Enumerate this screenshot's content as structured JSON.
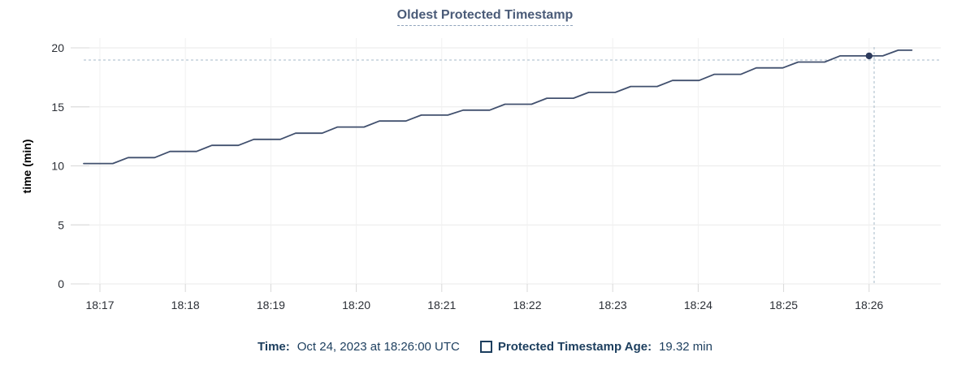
{
  "chart": {
    "title": "Oldest Protected Timestamp",
    "y_axis_label": "time (min)"
  },
  "legend": {
    "time_label": "Time:",
    "time_value": "Oct 24, 2023 at 18:26:00 UTC",
    "series_icon": "square-outline-icon",
    "series_label": "Protected Timestamp Age:",
    "series_value": "19.32 min"
  },
  "colors": {
    "line": "#41506e",
    "hover_dot": "#2c3a5c",
    "title_text": "#4a5b78",
    "title_underline": "#8fa3bb",
    "legend_text": "#1c3e5e",
    "tick_text": "#2b2f36",
    "gridline_h": "#eaeaea",
    "gridline_v": "#f1f1f1",
    "tick_stub": "#d8d8d8",
    "crosshair": "#a6bac9"
  },
  "chart_data": {
    "type": "line",
    "title": "Oldest Protected Timestamp",
    "ylabel": "time (min)",
    "ylim": [
      0,
      20
    ],
    "y_ticks": [
      0,
      5,
      10,
      15,
      20
    ],
    "x_tick_labels": [
      "18:17",
      "18:18",
      "18:19",
      "18:20",
      "18:21",
      "18:22",
      "18:23",
      "18:24",
      "18:25",
      "18:26"
    ],
    "x_unit": "minutes after 18:17 UTC, Oct 24, 2023",
    "grid": true,
    "legend_position": "bottom",
    "series": [
      {
        "name": "Protected Timestamp Age",
        "unit": "min",
        "points": [
          [
            -0.19,
            10.2
          ],
          [
            0.15,
            10.2
          ],
          [
            0.33,
            10.7
          ],
          [
            0.64,
            10.7
          ],
          [
            0.82,
            11.22
          ],
          [
            1.13,
            11.22
          ],
          [
            1.31,
            11.74
          ],
          [
            1.62,
            11.74
          ],
          [
            1.8,
            12.25
          ],
          [
            2.11,
            12.25
          ],
          [
            2.29,
            12.77
          ],
          [
            2.6,
            12.77
          ],
          [
            2.78,
            13.29
          ],
          [
            3.09,
            13.29
          ],
          [
            3.27,
            13.8
          ],
          [
            3.58,
            13.8
          ],
          [
            3.76,
            14.3
          ],
          [
            4.07,
            14.3
          ],
          [
            4.25,
            14.72
          ],
          [
            4.56,
            14.72
          ],
          [
            4.74,
            15.22
          ],
          [
            5.05,
            15.22
          ],
          [
            5.23,
            15.73
          ],
          [
            5.54,
            15.73
          ],
          [
            5.72,
            16.23
          ],
          [
            6.03,
            16.23
          ],
          [
            6.21,
            16.73
          ],
          [
            6.52,
            16.73
          ],
          [
            6.7,
            17.24
          ],
          [
            7.01,
            17.24
          ],
          [
            7.19,
            17.76
          ],
          [
            7.5,
            17.76
          ],
          [
            7.68,
            18.3
          ],
          [
            7.99,
            18.3
          ],
          [
            8.17,
            18.8
          ],
          [
            8.48,
            18.8
          ],
          [
            8.66,
            19.32
          ],
          [
            9.16,
            19.32
          ],
          [
            9.34,
            19.8
          ],
          [
            9.5,
            19.8
          ]
        ]
      }
    ],
    "hover_point": {
      "x_offset_min": 9.0,
      "time": "Oct 24, 2023 at 18:26:00 UTC",
      "value_min": 19.32
    }
  }
}
